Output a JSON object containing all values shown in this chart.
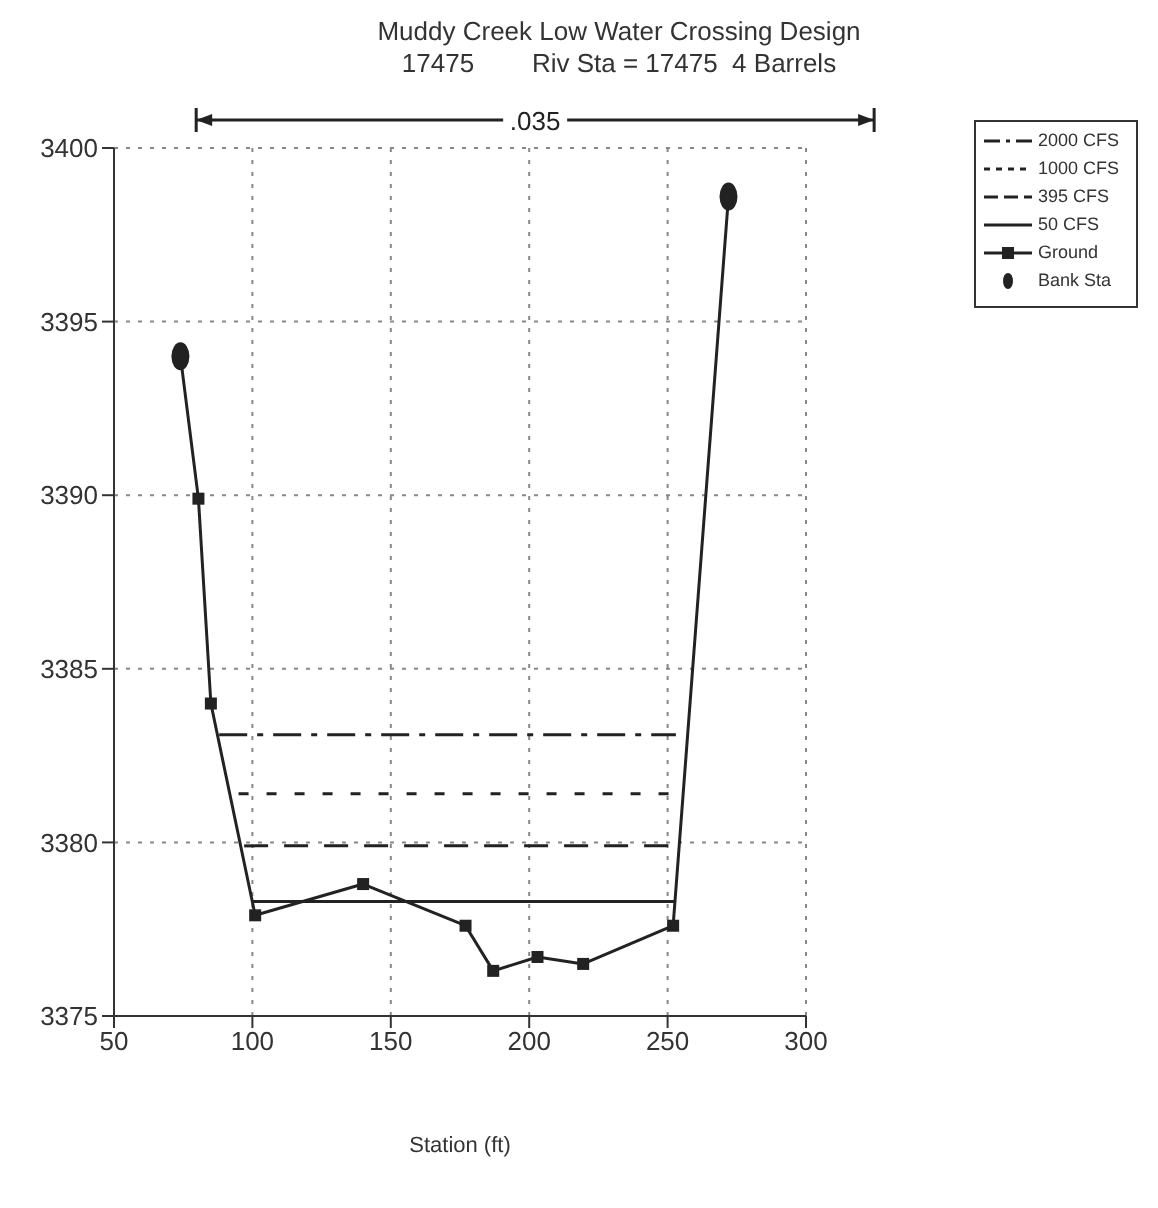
{
  "chart_data": {
    "type": "line",
    "title": "Muddy Creek Low Water Crossing Design",
    "subtitle": "17475        Riv Sta = 17475  4 Barrels",
    "xlabel": "Station (ft)",
    "annotations": [
      ".035"
    ],
    "xlim": [
      50,
      300
    ],
    "xticks": [
      50,
      100,
      150,
      200,
      250,
      300
    ],
    "ylim": [
      3375,
      3400
    ],
    "yticks": [
      3375,
      3380,
      3385,
      3390,
      3395,
      3400
    ],
    "grid": true,
    "legend": "top right",
    "series": [
      {
        "name": "2000 CFS",
        "color": "#222222",
        "line_style": "dashed",
        "marker": "none",
        "x": [
          88,
          253
        ],
        "values": [
          3383.1,
          3383.1
        ]
      },
      {
        "name": "1000 CFS",
        "color": "#222222",
        "line_style": "dotted",
        "marker": "none",
        "x": [
          95,
          253
        ],
        "values": [
          3381.4,
          3381.4
        ]
      },
      {
        "name": "395 CFS",
        "color": "#222222",
        "line_style": "dashed",
        "marker": "none",
        "x": [
          97,
          253
        ],
        "values": [
          3379.9,
          3379.9
        ]
      },
      {
        "name": "50 CFS",
        "color": "#222222",
        "line_style": "solid",
        "marker": "none",
        "x": [
          100,
          253
        ],
        "values": [
          3378.3,
          3378.3
        ]
      },
      {
        "name": "Ground",
        "color": "#222222",
        "line_style": "solid",
        "marker": "square",
        "x": [
          74,
          80.5,
          85,
          101,
          140,
          177,
          187,
          203,
          219.5,
          252,
          272
        ],
        "values": [
          3394.0,
          3389.9,
          3384.0,
          3377.9,
          3378.8,
          3377.6,
          3376.3,
          3376.7,
          3376.5,
          3377.6,
          3398.6
        ]
      },
      {
        "name": "Bank Sta",
        "type": "scatter",
        "color": "#222222",
        "marker": "circle",
        "x": [
          74,
          272
        ],
        "values": [
          3394.0,
          3398.6
        ]
      }
    ]
  }
}
